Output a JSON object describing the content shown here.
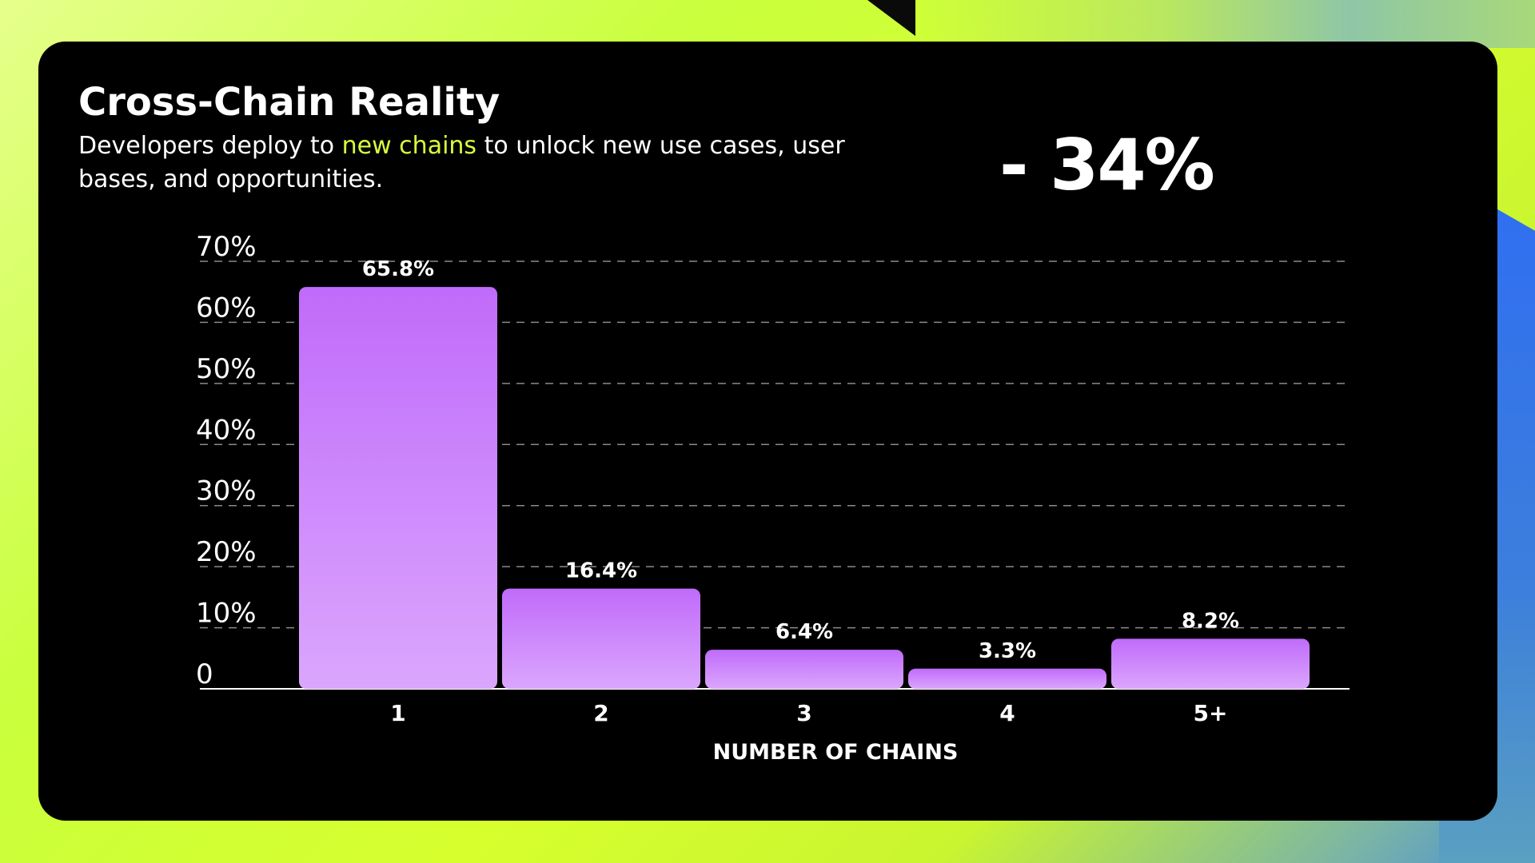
{
  "header": {
    "title": "Cross-Chain Reality",
    "subtitle_part1": "Developers deploy to ",
    "subtitle_highlight": "new chains",
    "subtitle_part2": " to unlock new use cases, user bases, and opportunities.",
    "big_stat": "- 34%"
  },
  "colors": {
    "bar_top": "#c06bfa",
    "bar_bottom": "#dba6fd",
    "highlight": "#d9ff3a",
    "card": "#000000"
  },
  "chart_data": {
    "type": "bar",
    "categories": [
      "1",
      "2",
      "3",
      "4",
      "5+"
    ],
    "values": [
      65.8,
      16.4,
      6.4,
      3.3,
      8.2
    ],
    "data_labels": [
      "65.8%",
      "16.4%",
      "6.4%",
      "3.3%",
      "8.2%"
    ],
    "title": "",
    "xlabel": "NUMBER OF CHAINS",
    "ylabel": "",
    "ylim": [
      0,
      70
    ],
    "yticks": [
      0,
      10,
      20,
      30,
      40,
      50,
      60,
      70
    ],
    "ytick_labels": [
      "0",
      "10%",
      "20%",
      "30%",
      "40%",
      "50%",
      "60%",
      "70%"
    ],
    "grid": true
  }
}
